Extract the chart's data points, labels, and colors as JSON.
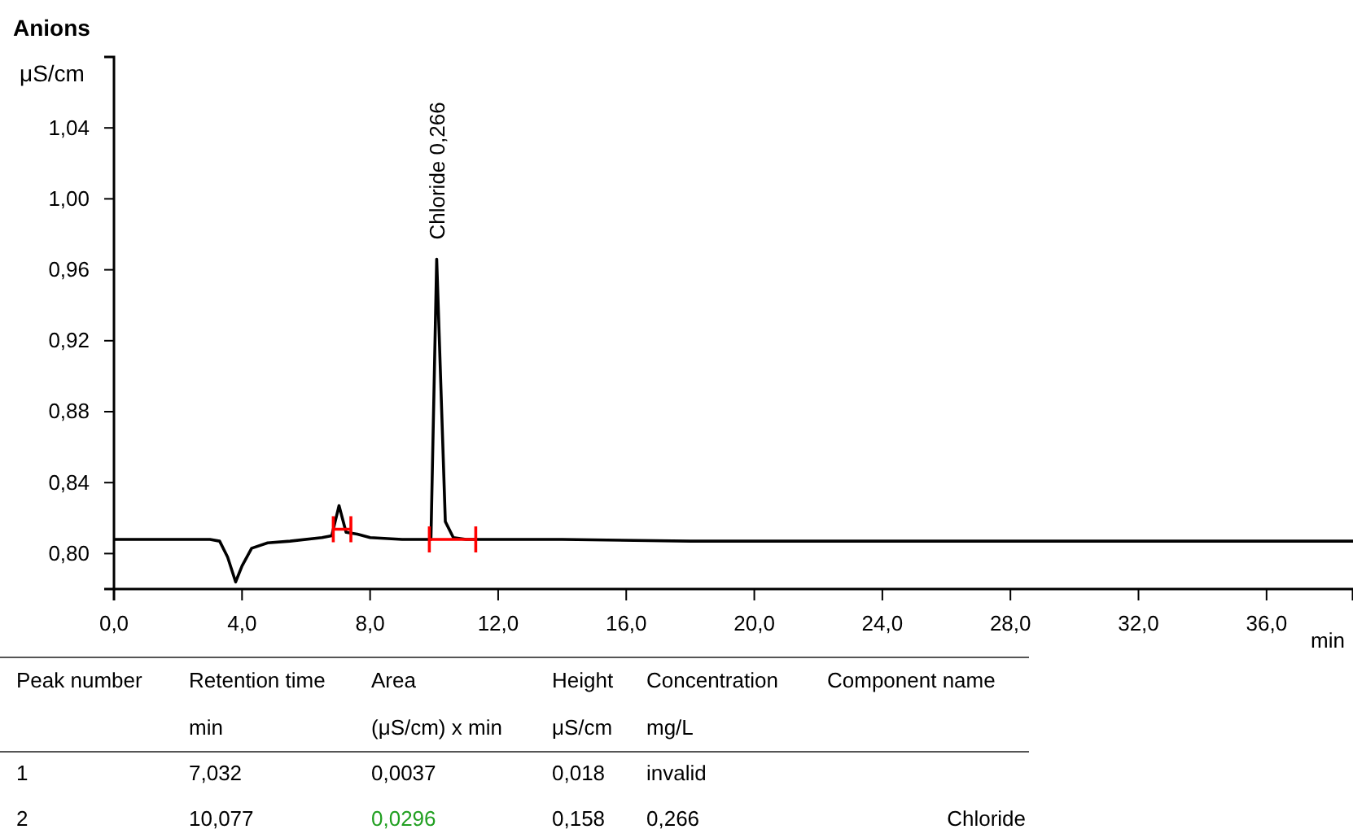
{
  "chart_data": [
    {
      "type": "line",
      "title": "Anions",
      "ylabel": "μS/cm",
      "xlabel": "min",
      "x": [
        0,
        1,
        2,
        3,
        3.3,
        3.55,
        3.8,
        4.0,
        4.3,
        4.8,
        5.5,
        6.5,
        6.8,
        7.03,
        7.25,
        7.6,
        8.0,
        9,
        9.9,
        10.08,
        10.35,
        10.6,
        11,
        14,
        18,
        22,
        26,
        30,
        34,
        38.7
      ],
      "series": [
        {
          "color": "#000000",
          "values": [
            0.808,
            0.808,
            0.808,
            0.808,
            0.807,
            0.798,
            0.784,
            0.793,
            0.803,
            0.806,
            0.807,
            0.809,
            0.81,
            0.827,
            0.812,
            0.811,
            0.809,
            0.808,
            0.808,
            0.966,
            0.818,
            0.809,
            0.808,
            0.808,
            0.807,
            0.807,
            0.807,
            0.807,
            0.807,
            0.807
          ]
        }
      ],
      "xlim": [
        0,
        38.7
      ],
      "ylim": [
        0.78,
        1.08
      ],
      "xticks": [
        {
          "value": 0,
          "label": "0,0"
        },
        {
          "value": 4,
          "label": "4,0"
        },
        {
          "value": 8,
          "label": "8,0"
        },
        {
          "value": 12,
          "label": "12,0"
        },
        {
          "value": 16,
          "label": "16,0"
        },
        {
          "value": 20,
          "label": "20,0"
        },
        {
          "value": 24,
          "label": "24,0"
        },
        {
          "value": 28,
          "label": "28,0"
        },
        {
          "value": 32,
          "label": "32,0"
        },
        {
          "value": 36,
          "label": "36,0"
        }
      ],
      "yticks": [
        {
          "value": 0.8,
          "label": "0,80"
        },
        {
          "value": 0.84,
          "label": "0,84"
        },
        {
          "value": 0.88,
          "label": "0,88"
        },
        {
          "value": 0.92,
          "label": "0,92"
        },
        {
          "value": 0.96,
          "label": "0,96"
        },
        {
          "value": 1.0,
          "label": "1,00"
        },
        {
          "value": 1.04,
          "label": "1,04"
        }
      ],
      "annotations": [
        {
          "text": "Chloride 0,266",
          "x": 10.077,
          "y": 0.966
        }
      ],
      "grid": false
    },
    {
      "type": "other",
      "annotations": [
        "Peak number",
        "Retention time",
        "Area",
        "Height",
        "Concentration",
        "Component name",
        "min",
        "(μS/cm) x min",
        "μS/cm",
        "mg/L",
        "1",
        "7,032",
        "0,0037",
        "0,018",
        "invalid",
        "2",
        "10,077",
        "0,0296",
        "0,158",
        "0,266",
        "Chloride"
      ]
    }
  ]
}
